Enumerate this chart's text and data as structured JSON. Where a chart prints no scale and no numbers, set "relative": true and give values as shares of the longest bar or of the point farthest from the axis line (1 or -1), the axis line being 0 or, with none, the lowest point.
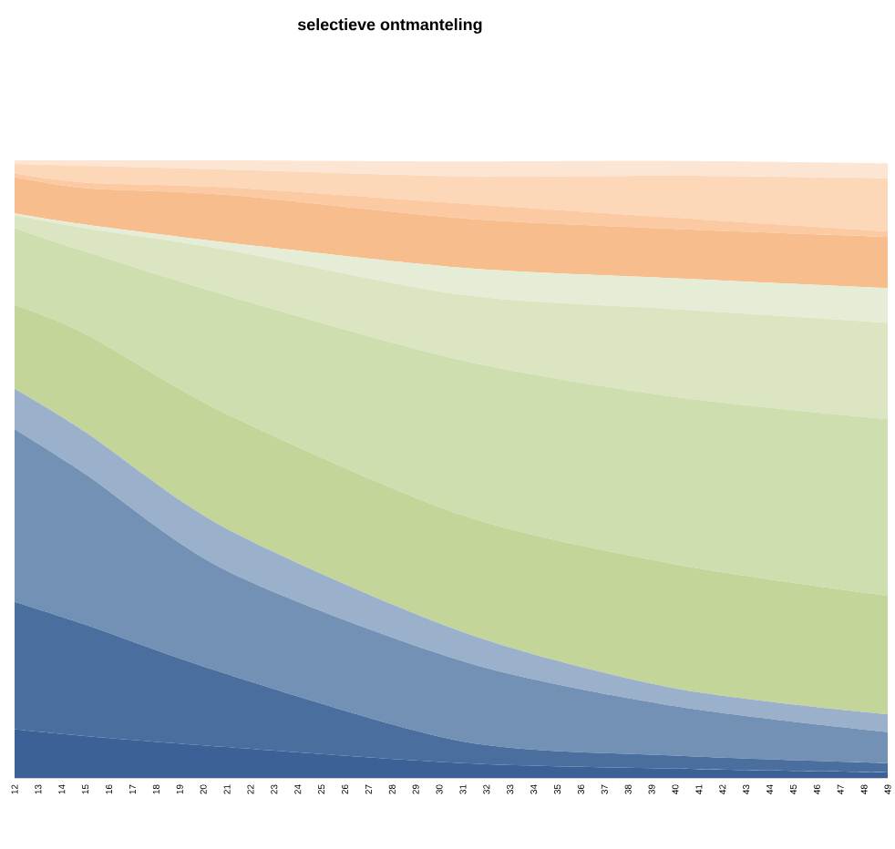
{
  "chart_data": {
    "type": "area",
    "title": "selectieve ontmanteling",
    "stacked": true,
    "relative": true,
    "x": [
      12,
      15,
      21,
      31,
      40,
      49
    ],
    "xlim": [
      12,
      49
    ],
    "xticks": [
      12,
      13,
      14,
      15,
      16,
      17,
      18,
      19,
      20,
      21,
      22,
      23,
      24,
      25,
      26,
      27,
      28,
      29,
      30,
      31,
      32,
      33,
      34,
      35,
      36,
      37,
      38,
      39,
      40,
      41,
      42,
      43,
      44,
      45,
      46,
      47,
      48,
      49
    ],
    "series": [
      {
        "color": "#3b6197",
        "values": [
          0.079,
          0.068,
          0.05,
          0.024,
          0.015,
          0.009
        ]
      },
      {
        "color": "#4a6f9e",
        "values": [
          0.206,
          0.18,
          0.118,
          0.035,
          0.021,
          0.015
        ]
      },
      {
        "color": "#7390b5",
        "values": [
          0.28,
          0.244,
          0.167,
          0.13,
          0.08,
          0.05
        ]
      },
      {
        "color": "#9ab0cb",
        "values": [
          0.065,
          0.068,
          0.068,
          0.047,
          0.029,
          0.029
        ]
      },
      {
        "color": "#c4d59a",
        "values": [
          0.136,
          0.159,
          0.186,
          0.189,
          0.201,
          0.192
        ]
      },
      {
        "color": "#cfdeae",
        "values": [
          0.124,
          0.133,
          0.192,
          0.251,
          0.271,
          0.286
        ]
      },
      {
        "color": "#dbe5c2",
        "values": [
          0.021,
          0.038,
          0.074,
          0.106,
          0.142,
          0.156
        ]
      },
      {
        "color": "#e5edd6",
        "values": [
          0.003,
          0.006,
          0.012,
          0.044,
          0.05,
          0.056
        ]
      },
      {
        "color": "#f8bd8c",
        "values": [
          0.059,
          0.059,
          0.077,
          0.08,
          0.08,
          0.083
        ]
      },
      {
        "color": "#fbcaa2",
        "values": [
          0.006,
          0.009,
          0.012,
          0.024,
          0.018,
          0.009
        ]
      },
      {
        "color": "#fcd8b9",
        "values": [
          0.015,
          0.027,
          0.029,
          0.044,
          0.068,
          0.086
        ]
      },
      {
        "color": "#fde5d3",
        "values": [
          0.006,
          0.009,
          0.015,
          0.024,
          0.024,
          0.024
        ]
      }
    ]
  }
}
